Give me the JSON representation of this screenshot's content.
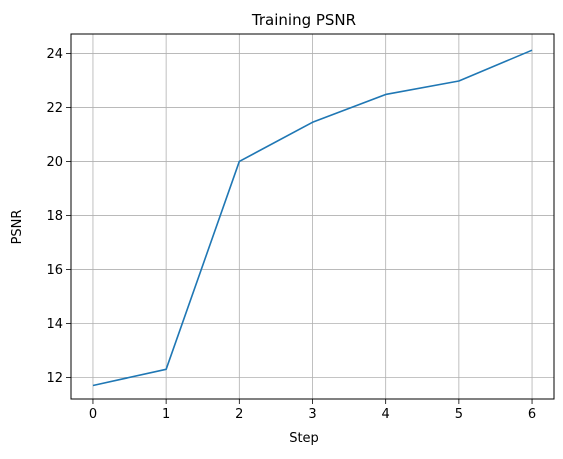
{
  "chart_data": {
    "type": "line",
    "title": "Training PSNR",
    "xlabel": "Step",
    "ylabel": "PSNR",
    "xlim": [
      -0.3,
      6.3
    ],
    "ylim": [
      11.2,
      24.72
    ],
    "xticks": [
      0,
      1,
      2,
      3,
      4,
      5,
      6
    ],
    "yticks": [
      12,
      14,
      16,
      18,
      20,
      22,
      24
    ],
    "grid": true,
    "series": [
      {
        "x": [
          0,
          1,
          2,
          3,
          4,
          5,
          6
        ],
        "y": [
          11.7,
          12.3,
          20.0,
          21.45,
          22.48,
          22.98,
          24.12
        ],
        "color": "#1f77b4"
      }
    ]
  }
}
